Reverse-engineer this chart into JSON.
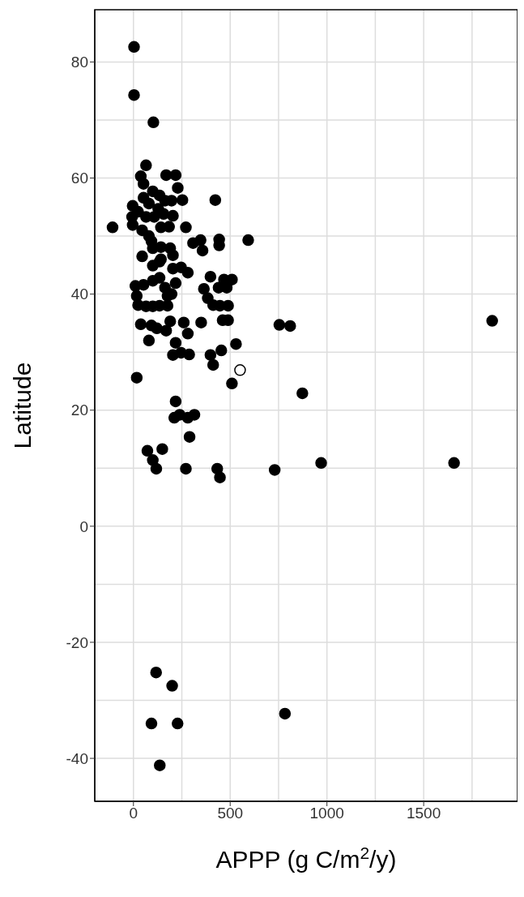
{
  "chart_data": {
    "type": "scatter",
    "xlabel": "APPP (g C/m$^{2}$/y)",
    "ylabel": "Latitude",
    "xlim": [
      -200,
      1985
    ],
    "ylim": [
      -47.4,
      89
    ],
    "xticks": [
      0,
      500,
      1000,
      1500
    ],
    "yticks": [
      -40,
      -20,
      0,
      20,
      40,
      60,
      80
    ],
    "grid": true,
    "legend": false,
    "marker": "circle",
    "series": [
      {
        "color": "#000000",
        "x": [
          3,
          3,
          103,
          65,
          38,
          52,
          169,
          218,
          229,
          423,
          253,
          100,
          135,
          52,
          163,
          -4,
          80,
          128,
          197,
          24,
          -7,
          65,
          107,
          156,
          204,
          -4,
          -108,
          142,
          184,
          271,
          45,
          80,
          93,
          593,
          443,
          443,
          308,
          347,
          357,
          100,
          142,
          190,
          204,
          45,
          142,
          100,
          135,
          204,
          246,
          281,
          398,
          468,
          509,
          218,
          10,
          52,
          100,
          135,
          163,
          364,
          440,
          482,
          17,
          176,
          197,
          384,
          24,
          65,
          100,
          135,
          176,
          412,
          447,
          489,
          38,
          93,
          121,
          190,
          169,
          260,
          281,
          350,
          461,
          489,
          80,
          218,
          530,
          204,
          246,
          288,
          398,
          454,
          412,
          17,
          509,
          218,
          211,
          239,
          281,
          315,
          290,
          72,
          149,
          100,
          118,
          271,
          433,
          447,
          1854,
          754,
          810,
          873,
          730,
          970,
          1657,
          117,
          200,
          783,
          93,
          228,
          136
        ],
        "values": [
          82.6,
          74.3,
          69.6,
          62.2,
          60.3,
          59,
          60.5,
          60.5,
          58.3,
          56.2,
          56.2,
          57.7,
          57,
          56.6,
          56.1,
          55.2,
          55.6,
          54.7,
          56.1,
          54.2,
          53.3,
          53.3,
          53.3,
          53.8,
          53.5,
          51.9,
          51.5,
          51.5,
          51.6,
          51.5,
          51,
          50,
          49.1,
          49.3,
          49.4,
          48.4,
          48.8,
          49.3,
          47.5,
          47.9,
          48.1,
          47.9,
          46.7,
          46.5,
          46,
          44.9,
          45.6,
          44.4,
          44.6,
          43.7,
          43,
          42.5,
          42.5,
          41.9,
          41.4,
          41.6,
          42.3,
          42.8,
          41.1,
          40.9,
          41.1,
          41.1,
          39.7,
          39.7,
          40,
          39.3,
          38.1,
          37.9,
          37.9,
          38,
          38,
          38.1,
          38,
          38,
          34.8,
          34.6,
          34.1,
          35.3,
          33.7,
          35.1,
          33.2,
          35.1,
          35.5,
          35.5,
          32,
          31.6,
          31.4,
          29.5,
          29.9,
          29.6,
          29.5,
          30.3,
          27.8,
          25.6,
          24.6,
          21.5,
          18.7,
          19.2,
          18.7,
          19.2,
          15.4,
          13,
          13.3,
          11.4,
          9.9,
          9.9,
          9.9,
          8.4,
          35.4,
          34.7,
          34.5,
          22.9,
          9.7,
          10.9,
          10.9,
          -25.2,
          -27.5,
          -32.3,
          -34,
          -34,
          -41.2
        ]
      },
      {
        "color": "#ffffff",
        "x": [
          551
        ],
        "values": [
          26.9
        ]
      }
    ]
  }
}
